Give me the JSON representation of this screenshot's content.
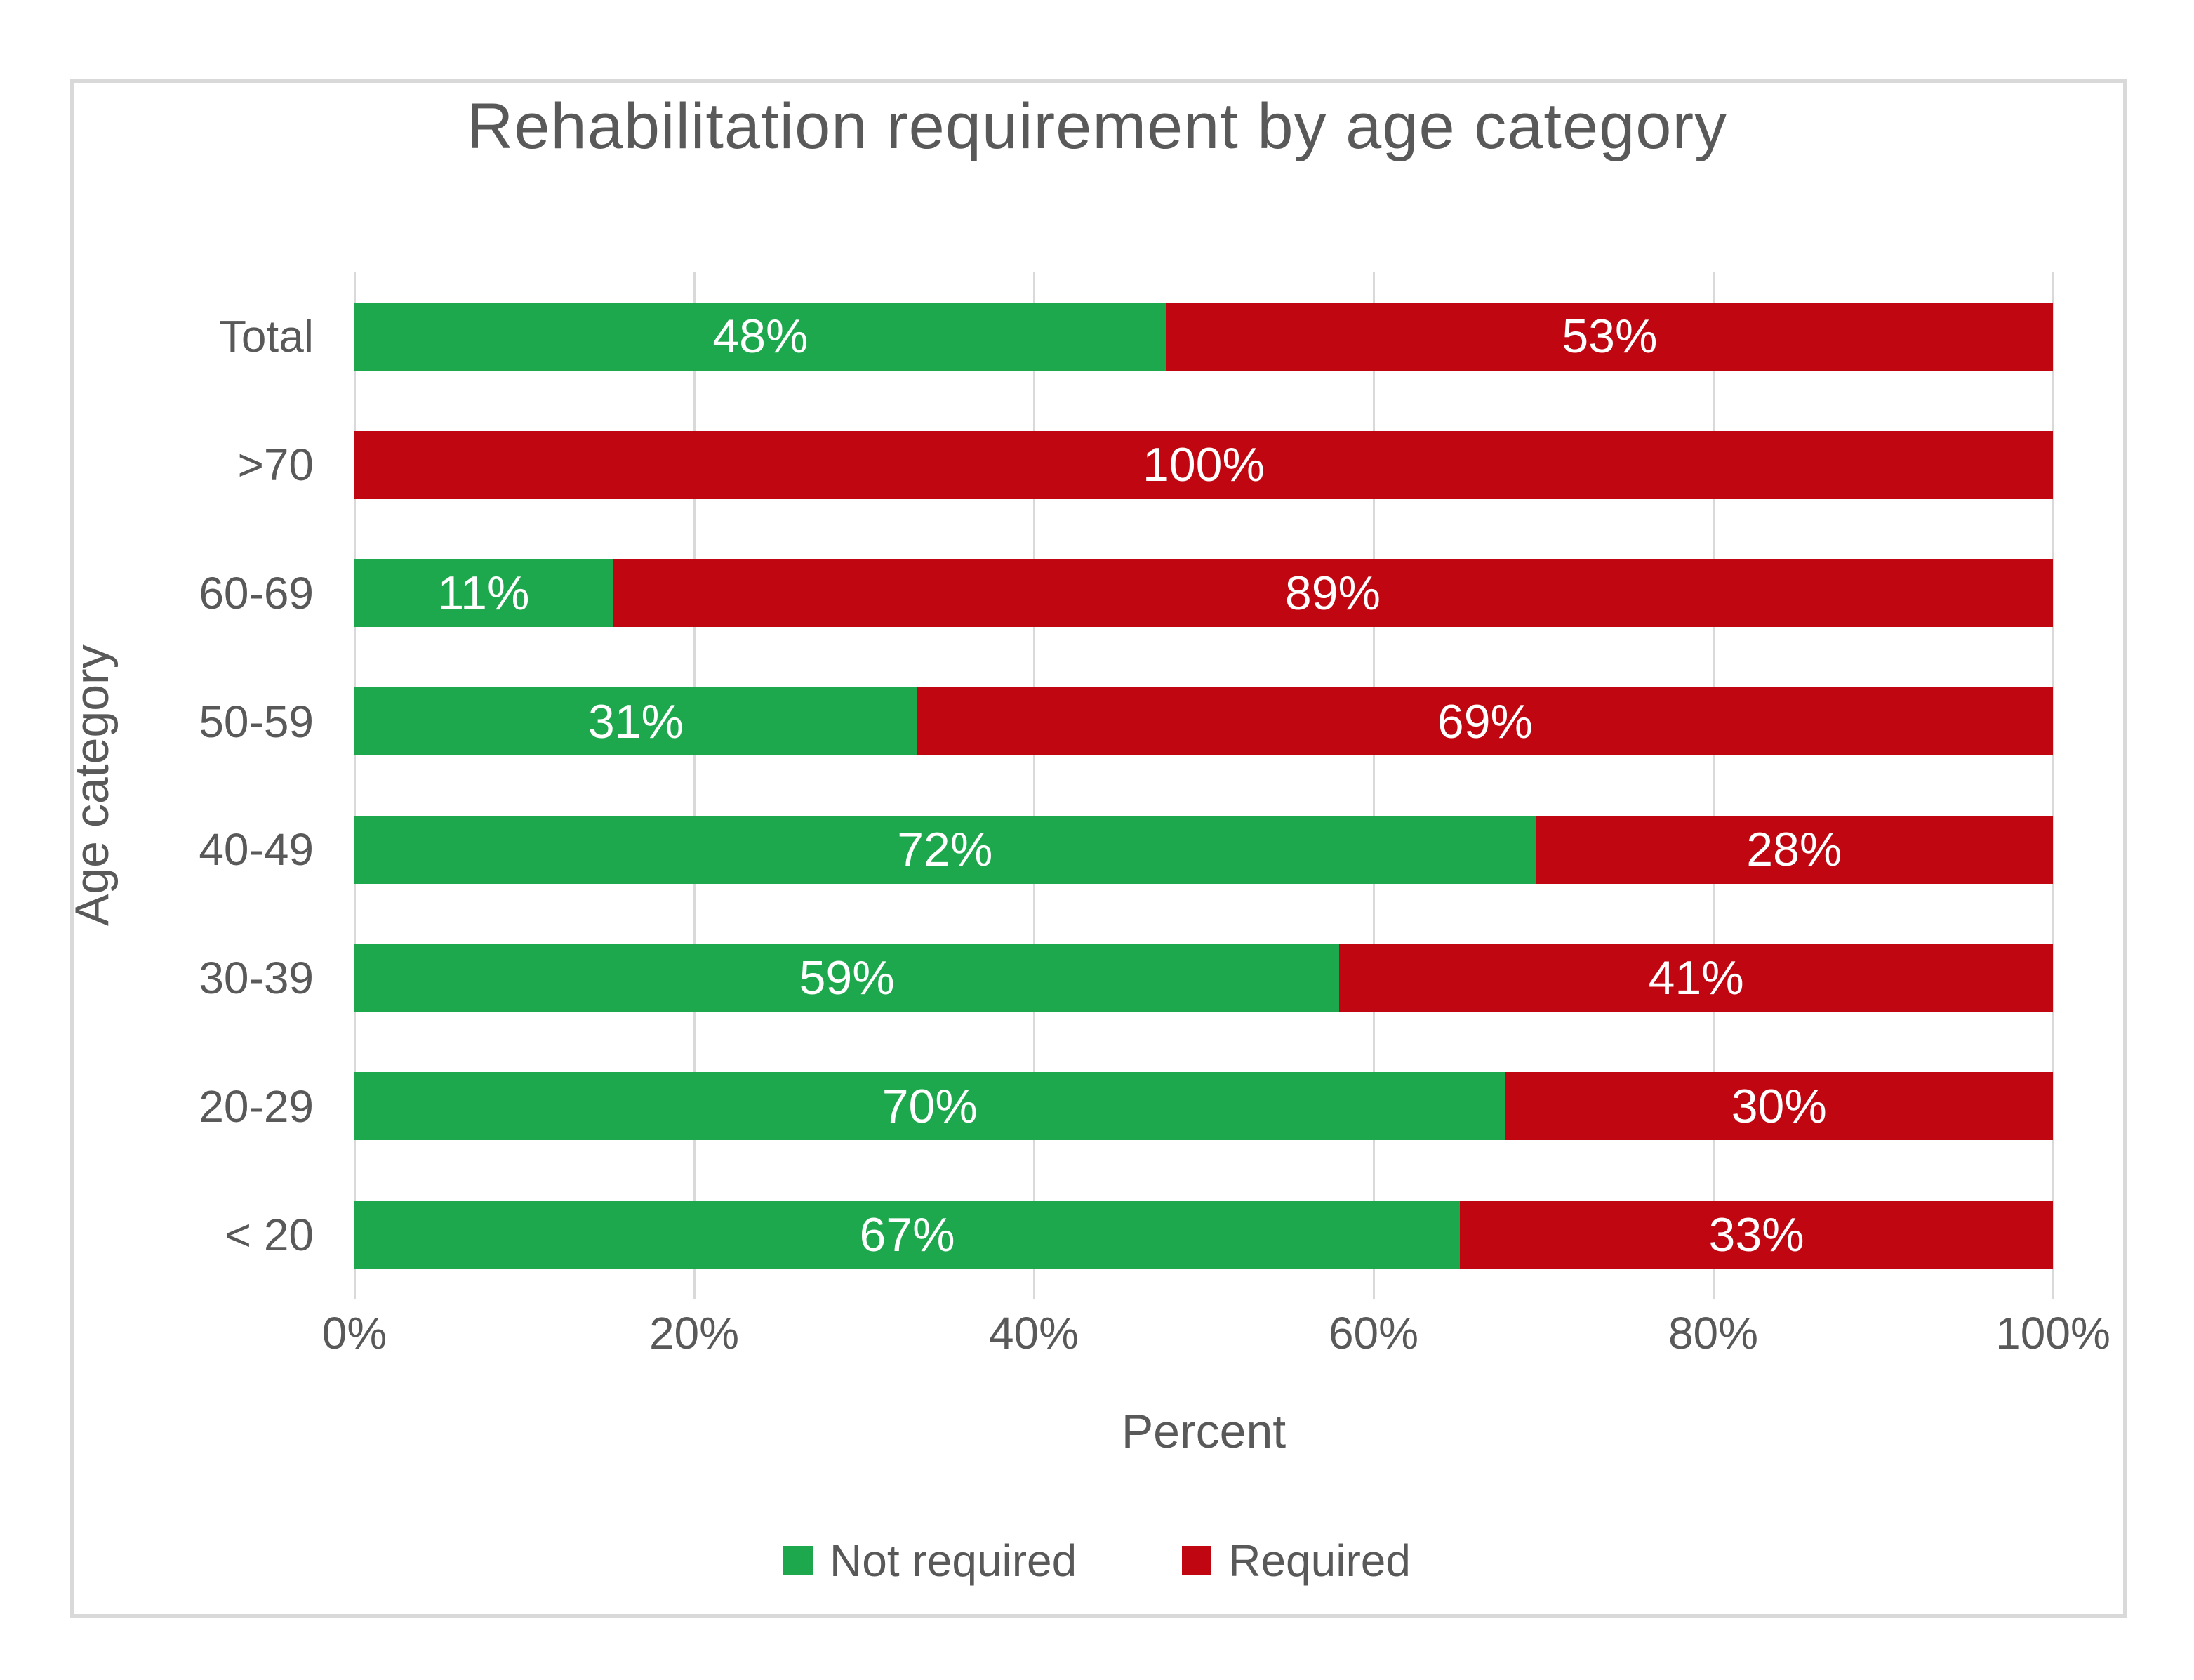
{
  "chart_data": {
    "type": "bar",
    "orientation": "horizontal",
    "stacked": true,
    "title": "Rehabilitation requirement by age category",
    "xlabel": "Percent",
    "ylabel": "Age category",
    "categories": [
      "Total",
      ">70",
      "60-69",
      "50-59",
      "40-49",
      "30-39",
      "20-29",
      "< 20"
    ],
    "series": [
      {
        "name": "Not required",
        "color": "#1ea84d",
        "values": [
          48,
          0,
          11,
          31,
          72,
          59,
          70,
          67
        ]
      },
      {
        "name": "Required",
        "color": "#c00711",
        "values": [
          53,
          100,
          89,
          69,
          28,
          41,
          30,
          33
        ]
      }
    ],
    "value_label_suffix": "%",
    "x_ticks": [
      "0%",
      "20%",
      "40%",
      "60%",
      "80%",
      "100%"
    ],
    "xlim": [
      0,
      100
    ],
    "gridlines": "vertical",
    "legend_position": "bottom"
  },
  "colors": {
    "text": "#595959",
    "gridline": "#d9d9d9",
    "frame_border": "#d9d9d9",
    "background": "#ffffff",
    "bar_label": "#ffffff"
  }
}
